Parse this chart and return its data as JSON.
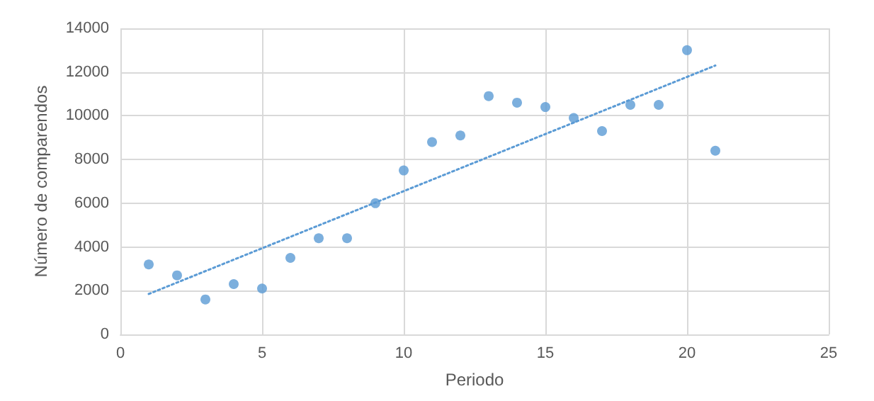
{
  "chart_data": {
    "type": "scatter",
    "xlabel": "Periodo",
    "ylabel": "Número de comparendos",
    "x": [
      1,
      2,
      3,
      4,
      5,
      6,
      7,
      8,
      9,
      10,
      11,
      12,
      13,
      14,
      15,
      16,
      17,
      18,
      19,
      20,
      21
    ],
    "series": [
      {
        "color": "#5b9bd5",
        "marker": "circle",
        "values": [
          3200,
          2700,
          1600,
          2300,
          2100,
          3500,
          4400,
          4400,
          6000,
          7500,
          8800,
          9100,
          10900,
          10600,
          10400,
          9900,
          9300,
          10500,
          10500,
          13000,
          8400
        ]
      },
      {
        "type": "line",
        "color": "#5b9bd5",
        "line_style": "dotted",
        "marker": "none",
        "x": [
          1,
          21
        ],
        "values": [
          1850,
          12300
        ]
      }
    ],
    "xlim": [
      0,
      25
    ],
    "xticks": [
      0,
      5,
      10,
      15,
      20,
      25
    ],
    "ylim": [
      0,
      14000
    ],
    "yticks": [
      0,
      2000,
      4000,
      6000,
      8000,
      10000,
      12000,
      14000
    ],
    "grid": true
  }
}
